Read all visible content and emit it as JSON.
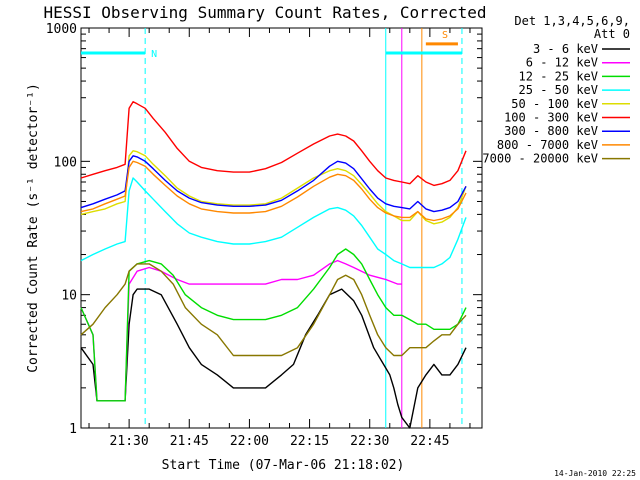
{
  "chart_data": {
    "type": "line",
    "title": "HESSI Observing Summary Count Rates, Corrected",
    "ylabel": "Corrected Count Rate (s⁻¹ detector⁻¹)",
    "xlabel": "Start Time (07-Mar-06 21:18:02)",
    "x_unit": "minutes after 21:18:02",
    "xlim": [
      0,
      100
    ],
    "ylim": [
      1,
      1000
    ],
    "y_scale": "log",
    "y_ticks": [
      1,
      10,
      100,
      1000
    ],
    "x_ticks": [
      {
        "t": 12,
        "label": "21:30"
      },
      {
        "t": 27,
        "label": "21:45"
      },
      {
        "t": 42,
        "label": "22:00"
      },
      {
        "t": 57,
        "label": "22:15"
      },
      {
        "t": 72,
        "label": "22:30"
      },
      {
        "t": 87,
        "label": "22:45"
      }
    ],
    "legend_header": [
      "Det 1,3,4,5,6,9,",
      "Att 0"
    ],
    "legend_position": "right",
    "footer_date": "14-Jan-2010 22:25",
    "series": [
      {
        "name": "3 - 6 keV",
        "color": "#000000",
        "x": [
          0,
          3,
          4,
          5,
          11,
          12,
          13,
          14,
          17,
          20,
          24,
          27,
          30,
          34,
          38,
          42,
          46,
          50,
          53,
          56,
          59,
          62,
          65,
          68,
          70,
          73,
          77,
          78,
          79,
          80,
          82,
          84,
          86,
          88,
          90,
          92,
          94,
          96
        ],
        "y": [
          4,
          3,
          1.6,
          1.6,
          1.6,
          6,
          10,
          11,
          11,
          10,
          6,
          4,
          3,
          2.5,
          2,
          2,
          2,
          2.5,
          3,
          5,
          7,
          10,
          11,
          9,
          7,
          4,
          2.5,
          2,
          1.5,
          1.2,
          1,
          2,
          2.5,
          3,
          2.5,
          2.5,
          3,
          4
        ]
      },
      {
        "name": "6 - 12 keV",
        "color": "#ff00ff",
        "x": [
          0,
          3,
          4,
          5,
          11,
          12,
          14,
          17,
          20,
          24,
          27,
          30,
          34,
          38,
          42,
          46,
          50,
          54,
          58,
          62,
          64,
          66,
          68,
          72,
          76,
          79,
          80
        ],
        "y": [
          8,
          5,
          1.6,
          1.6,
          1.6,
          12,
          15,
          16,
          15,
          13,
          12,
          12,
          12,
          12,
          12,
          12,
          13,
          13,
          14,
          17,
          18,
          17,
          16,
          14,
          13,
          12,
          12
        ]
      },
      {
        "name": "12 - 25 keV",
        "color": "#00dd00",
        "x": [
          0,
          3,
          4,
          5,
          11,
          12,
          14,
          17,
          20,
          23,
          26,
          30,
          34,
          38,
          42,
          46,
          50,
          54,
          58,
          62,
          64,
          66,
          68,
          70,
          72,
          74,
          76,
          78,
          80,
          82,
          84,
          86,
          88,
          90,
          92,
          94,
          96
        ],
        "y": [
          8,
          5,
          1.6,
          1.6,
          1.6,
          15,
          17,
          18,
          17,
          14,
          10,
          8,
          7,
          6.5,
          6.5,
          6.5,
          7,
          8,
          11,
          16,
          20,
          22,
          20,
          17,
          13,
          10,
          8,
          7,
          7,
          6.5,
          6,
          6,
          5.5,
          5.5,
          5.5,
          6,
          8
        ]
      },
      {
        "name": "25 - 50 keV",
        "color": "#00ffff",
        "x": [
          0,
          3,
          6,
          9,
          11,
          12,
          13,
          14,
          16,
          18,
          21,
          24,
          27,
          30,
          34,
          38,
          42,
          46,
          50,
          54,
          58,
          62,
          64,
          66,
          68,
          70,
          72,
          74,
          76,
          78,
          80,
          82,
          84,
          86,
          88,
          90,
          92,
          94,
          96
        ],
        "y": [
          18,
          20,
          22,
          24,
          25,
          60,
          75,
          70,
          60,
          52,
          42,
          34,
          29,
          27,
          25,
          24,
          24,
          25,
          27,
          32,
          38,
          44,
          45,
          43,
          39,
          33,
          27,
          22,
          20,
          18,
          17,
          16,
          16,
          16,
          16,
          17,
          19,
          26,
          38
        ]
      },
      {
        "name": "50 - 100 keV",
        "color": "#dddd00",
        "x": [
          0,
          3,
          6,
          9,
          11,
          12,
          13,
          14,
          16,
          18,
          21,
          24,
          27,
          30,
          34,
          38,
          42,
          46,
          50,
          54,
          58,
          62,
          64,
          66,
          68,
          70,
          72,
          74,
          76,
          78,
          80,
          82,
          84,
          86,
          88,
          90,
          92,
          94,
          96
        ],
        "y": [
          40,
          42,
          44,
          48,
          50,
          110,
          120,
          118,
          110,
          95,
          78,
          63,
          55,
          50,
          48,
          47,
          47,
          48,
          53,
          63,
          75,
          85,
          88,
          85,
          78,
          67,
          57,
          48,
          42,
          39,
          36,
          36,
          42,
          36,
          34,
          35,
          38,
          45,
          65
        ]
      },
      {
        "name": "100 - 300 keV",
        "color": "#ff0000",
        "x": [
          0,
          3,
          6,
          9,
          11,
          12,
          13,
          14,
          16,
          18,
          21,
          24,
          27,
          30,
          34,
          38,
          42,
          46,
          50,
          54,
          58,
          62,
          64,
          66,
          68,
          70,
          72,
          74,
          76,
          78,
          80,
          82,
          84,
          86,
          88,
          90,
          92,
          94,
          96
        ],
        "y": [
          75,
          80,
          85,
          90,
          95,
          250,
          280,
          270,
          250,
          210,
          165,
          125,
          100,
          90,
          85,
          83,
          83,
          88,
          98,
          115,
          135,
          155,
          160,
          155,
          142,
          120,
          100,
          85,
          75,
          72,
          70,
          68,
          78,
          70,
          66,
          68,
          72,
          85,
          120
        ]
      },
      {
        "name": "300 - 800 keV",
        "color": "#0000ff",
        "x": [
          0,
          3,
          6,
          9,
          11,
          12,
          13,
          14,
          16,
          18,
          21,
          24,
          27,
          30,
          34,
          38,
          42,
          46,
          50,
          54,
          58,
          62,
          64,
          66,
          68,
          70,
          72,
          74,
          76,
          78,
          80,
          82,
          84,
          86,
          88,
          90,
          92,
          94,
          96
        ],
        "y": [
          45,
          48,
          52,
          56,
          60,
          100,
          110,
          108,
          100,
          88,
          72,
          60,
          53,
          49,
          47,
          46,
          46,
          47,
          51,
          60,
          72,
          92,
          100,
          97,
          88,
          74,
          62,
          53,
          48,
          46,
          45,
          44,
          50,
          44,
          42,
          43,
          45,
          50,
          65
        ]
      },
      {
        "name": "800 - 7000 keV",
        "color": "#ff8800",
        "x": [
          0,
          3,
          6,
          9,
          11,
          12,
          13,
          14,
          16,
          18,
          21,
          24,
          27,
          30,
          34,
          38,
          42,
          46,
          50,
          54,
          58,
          62,
          64,
          66,
          68,
          70,
          72,
          74,
          76,
          78,
          80,
          82,
          84,
          86,
          88,
          90,
          92,
          94,
          96
        ],
        "y": [
          42,
          44,
          48,
          52,
          55,
          90,
          100,
          98,
          92,
          80,
          66,
          55,
          48,
          44,
          42,
          41,
          41,
          42,
          46,
          54,
          65,
          76,
          80,
          78,
          72,
          62,
          52,
          45,
          41,
          39,
          38,
          38,
          42,
          37,
          36,
          37,
          39,
          44,
          58
        ]
      },
      {
        "name": "7000 - 20000 keV",
        "color": "#887700",
        "x": [
          0,
          3,
          6,
          9,
          11,
          12,
          14,
          17,
          20,
          23,
          26,
          30,
          34,
          38,
          42,
          46,
          50,
          54,
          58,
          62,
          64,
          66,
          68,
          70,
          72,
          74,
          76,
          78,
          80,
          82,
          84,
          86,
          88,
          90,
          92,
          94,
          96
        ],
        "y": [
          5,
          6,
          8,
          10,
          12,
          15,
          17,
          17,
          15,
          12,
          8,
          6,
          5,
          3.5,
          3.5,
          3.5,
          3.5,
          4,
          6,
          10,
          13,
          14,
          13,
          10,
          7,
          5,
          4,
          3.5,
          3.5,
          4,
          4,
          4,
          4.5,
          5,
          5,
          6,
          7
        ]
      }
    ],
    "markers": [
      {
        "type": "dashed-line",
        "color": "#00ffff",
        "t": 16
      },
      {
        "type": "dashed-line",
        "color": "#00ffff",
        "t": 95
      },
      {
        "type": "line",
        "color": "#00ffff",
        "t": 76
      },
      {
        "type": "line",
        "color": "#ff8800",
        "t": 85
      },
      {
        "type": "line",
        "color": "#ff00ff",
        "t": 80
      }
    ],
    "flag_bars": [
      {
        "color": "#00ffff",
        "from": 0,
        "to": 16,
        "label": "N",
        "y": 650
      },
      {
        "color": "#00ffff",
        "from": 76,
        "to": 95,
        "label": "",
        "y": 650
      },
      {
        "color": "#ff8800",
        "from": 86,
        "to": 94,
        "label": "S",
        "y": 760
      }
    ]
  }
}
